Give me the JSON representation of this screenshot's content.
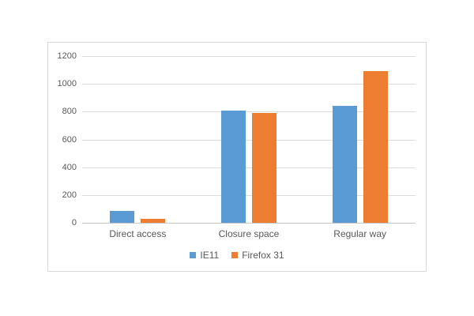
{
  "chart_data": {
    "type": "bar",
    "categories": [
      "Direct access",
      "Closure space",
      "Regular way"
    ],
    "series": [
      {
        "name": "IE11",
        "color": "#5b9bd5",
        "values": [
          85,
          805,
          840
        ]
      },
      {
        "name": "Firefox 31",
        "color": "#ed7d31",
        "values": [
          30,
          790,
          1090
        ]
      }
    ],
    "yticks": [
      0,
      200,
      400,
      600,
      800,
      1000,
      1200
    ],
    "ylim": [
      0,
      1200
    ],
    "xlabel": "",
    "ylabel": "",
    "grid": true,
    "legend_position": "bottom",
    "colors": {
      "tick_text": "#595959",
      "gridline": "#dcdcdc",
      "axis_line": "#c6c6c6",
      "frame_border": "#d9d9d9",
      "background": "#ffffff"
    }
  }
}
